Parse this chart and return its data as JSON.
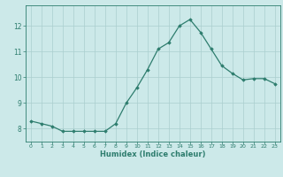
{
  "x": [
    0,
    1,
    2,
    3,
    4,
    5,
    6,
    7,
    8,
    9,
    10,
    11,
    12,
    13,
    14,
    15,
    16,
    17,
    18,
    19,
    20,
    21,
    22,
    23
  ],
  "y": [
    8.3,
    8.2,
    8.1,
    7.9,
    7.9,
    7.9,
    7.9,
    7.9,
    8.2,
    9.0,
    9.6,
    10.3,
    11.1,
    11.35,
    12.0,
    12.25,
    11.75,
    11.1,
    10.45,
    10.15,
    9.9,
    9.95,
    9.95,
    9.75
  ],
  "xlabel": "Humidex (Indice chaleur)",
  "ylim": [
    7.5,
    12.8
  ],
  "xlim": [
    -0.5,
    23.5
  ],
  "yticks": [
    8,
    9,
    10,
    11,
    12
  ],
  "xticks": [
    0,
    1,
    2,
    3,
    4,
    5,
    6,
    7,
    8,
    9,
    10,
    11,
    12,
    13,
    14,
    15,
    16,
    17,
    18,
    19,
    20,
    21,
    22,
    23
  ],
  "line_color": "#2e7d6e",
  "marker_color": "#2e7d6e",
  "bg_color": "#cce9e9",
  "grid_color": "#aacece",
  "axis_color": "#2e7d6e",
  "tick_label_color": "#2e7d6e",
  "xlabel_color": "#2e7d6e"
}
